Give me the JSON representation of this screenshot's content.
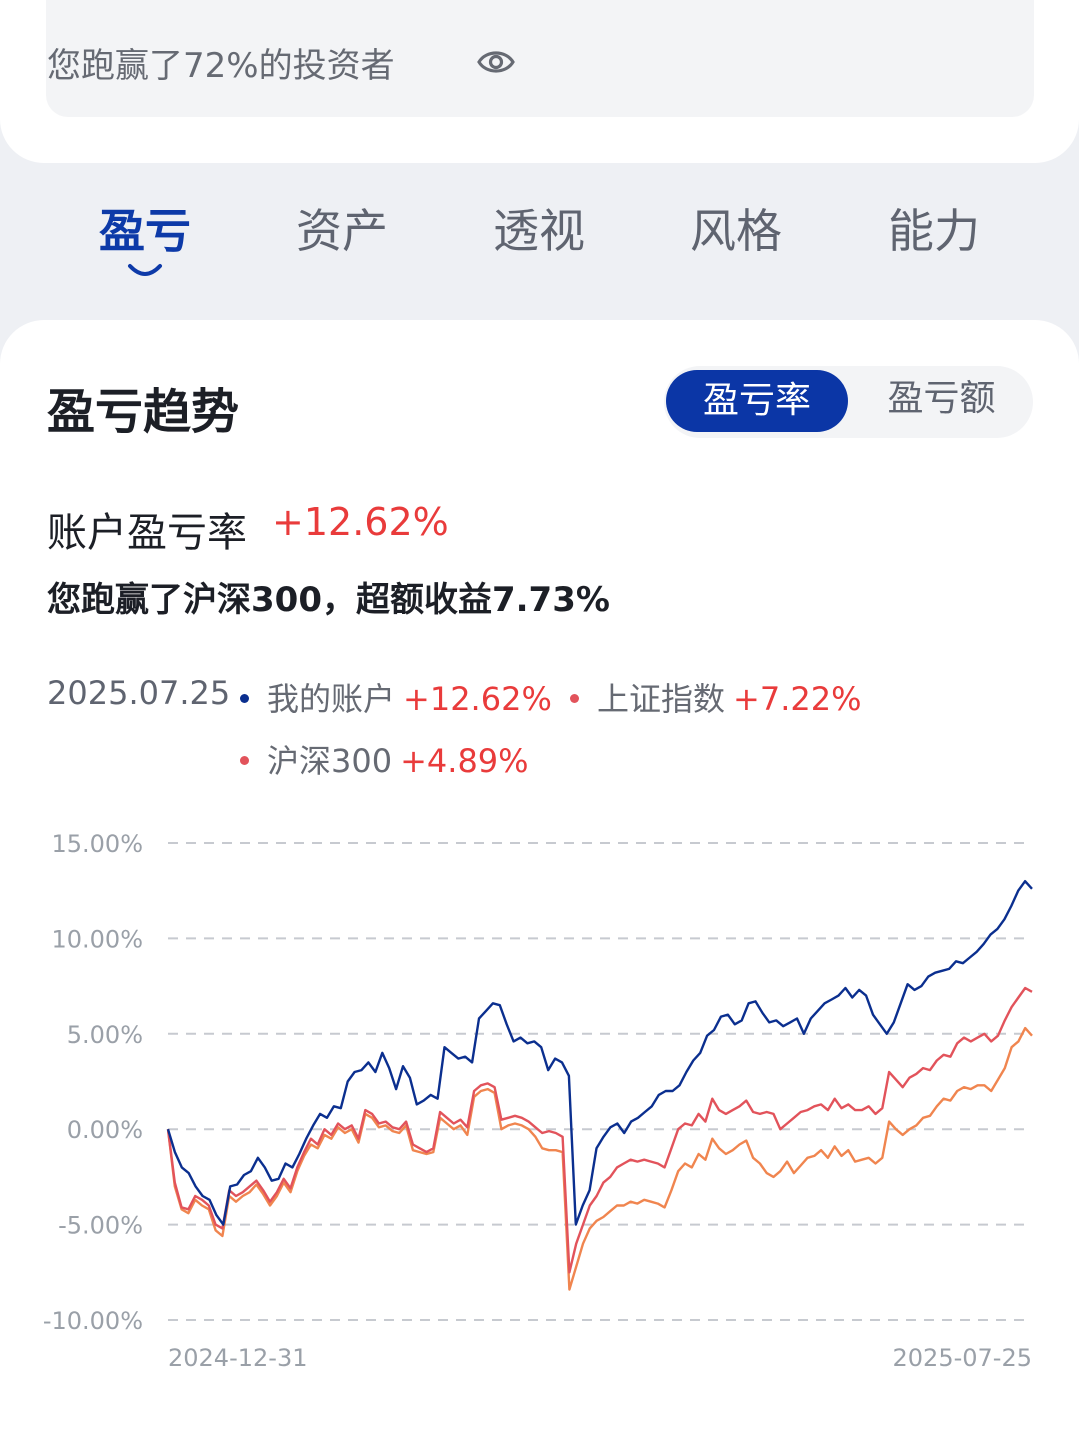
{
  "summary": {
    "beat_text": "您跑赢了72%的投资者"
  },
  "tabs": [
    {
      "label": "盈亏"
    },
    {
      "label": "资产"
    },
    {
      "label": "透视"
    },
    {
      "label": "风格"
    },
    {
      "label": "能力"
    }
  ],
  "section": {
    "title": "盈亏趋势",
    "toggle": {
      "active": "盈亏率",
      "inactive": "盈亏额"
    },
    "rate_label": "账户盈亏率",
    "rate_value": "+12.62%",
    "beat_sub": "您跑赢了沪深300，超额收益7.73%"
  },
  "legend": {
    "date": "2025.07.25",
    "items": [
      {
        "name": "我的账户",
        "value": "+12.62%",
        "color": "#0b2f8f"
      },
      {
        "name": "上证指数",
        "value": "+7.22%",
        "color": "#e2535b"
      },
      {
        "name": "沪深300",
        "value": "+4.89%",
        "color": "#f0854f"
      }
    ]
  },
  "chart_data": {
    "type": "line",
    "x_start": "2024-12-31",
    "x_end": "2025-07-25",
    "x_tick_labels": [
      "2024-12-31",
      "2025-07-25"
    ],
    "ylim": [
      -10,
      15
    ],
    "y_ticks": [
      15,
      10,
      5,
      0,
      -5,
      -10
    ],
    "y_tick_labels": [
      "15.00%",
      "10.00%",
      "5.00%",
      "0.00%",
      "-5.00%",
      "-10.00%"
    ],
    "grid": true,
    "series": [
      {
        "name": "我的账户",
        "color": "#0b2f8f",
        "values": [
          0,
          -1.2,
          -2.0,
          -2.3,
          -3.0,
          -3.5,
          -3.7,
          -4.5,
          -5.0,
          -3.0,
          -2.9,
          -2.4,
          -2.2,
          -1.5,
          -2.0,
          -2.7,
          -2.6,
          -1.8,
          -2.0,
          -1.3,
          -0.5,
          0.2,
          0.8,
          0.6,
          1.2,
          1.1,
          2.5,
          3.0,
          3.1,
          3.5,
          3.0,
          4.0,
          3.2,
          2.1,
          3.3,
          2.7,
          1.3,
          1.5,
          1.8,
          1.6,
          4.3,
          4.0,
          3.7,
          3.8,
          3.5,
          5.8,
          6.2,
          6.6,
          6.5,
          5.5,
          4.6,
          4.8,
          4.5,
          4.6,
          4.3,
          3.1,
          3.7,
          3.5,
          2.8,
          -5.0,
          -4.0,
          -3.2,
          -1.0,
          -0.4,
          0.1,
          0.3,
          -0.2,
          0.4,
          0.6,
          0.9,
          1.2,
          1.8,
          2.0,
          2.0,
          2.3,
          3.0,
          3.6,
          4.0,
          4.9,
          5.2,
          5.9,
          6.0,
          5.5,
          5.7,
          6.6,
          6.7,
          6.1,
          5.6,
          5.7,
          5.4,
          5.6,
          5.8,
          5.0,
          5.8,
          6.2,
          6.6,
          6.8,
          7.0,
          7.4,
          6.9,
          7.3,
          7.0,
          6.0,
          5.5,
          5.0,
          5.6,
          6.6,
          7.6,
          7.3,
          7.5,
          8.0,
          8.2,
          8.3,
          8.4,
          8.8,
          8.7,
          9.0,
          9.3,
          9.7,
          10.2,
          10.5,
          11.0,
          11.7,
          12.5,
          13.0,
          12.6
        ]
      },
      {
        "name": "上证指数",
        "color": "#e2535b",
        "values": [
          0,
          -2.8,
          -4.1,
          -4.2,
          -3.5,
          -3.7,
          -4.0,
          -5.0,
          -5.2,
          -3.2,
          -3.5,
          -3.3,
          -3.0,
          -2.7,
          -3.2,
          -3.8,
          -3.3,
          -2.6,
          -3.1,
          -2.0,
          -1.2,
          -0.5,
          -0.8,
          0.0,
          -0.3,
          0.3,
          0.0,
          0.2,
          -0.5,
          1.0,
          0.8,
          0.3,
          0.4,
          0.1,
          0.0,
          0.4,
          -0.8,
          -1.0,
          -1.2,
          -1.0,
          0.9,
          0.6,
          0.3,
          0.5,
          0.1,
          2.0,
          2.3,
          2.4,
          2.2,
          0.5,
          0.6,
          0.7,
          0.6,
          0.4,
          0.1,
          -0.2,
          -0.1,
          -0.2,
          -0.4,
          -7.5,
          -6.0,
          -5.0,
          -4.0,
          -3.5,
          -2.8,
          -2.5,
          -2.0,
          -1.8,
          -1.6,
          -1.7,
          -1.6,
          -1.7,
          -1.8,
          -2.0,
          -1.0,
          0.0,
          0.3,
          0.2,
          0.8,
          0.4,
          1.6,
          1.0,
          0.8,
          1.0,
          1.2,
          1.5,
          0.9,
          0.8,
          0.9,
          0.8,
          0.0,
          0.3,
          0.6,
          0.9,
          1.0,
          1.2,
          1.3,
          1.0,
          1.6,
          1.1,
          1.3,
          1.0,
          1.0,
          1.2,
          0.8,
          1.1,
          3.0,
          2.6,
          2.2,
          2.7,
          2.9,
          3.2,
          3.1,
          3.6,
          3.9,
          3.8,
          4.5,
          4.8,
          4.6,
          4.8,
          5.0,
          4.6,
          4.9,
          5.7,
          6.4,
          6.9,
          7.4,
          7.2
        ]
      },
      {
        "name": "沪深300",
        "color": "#f0854f",
        "values": [
          0,
          -3.0,
          -4.2,
          -4.4,
          -3.7,
          -4.0,
          -4.2,
          -5.3,
          -5.6,
          -3.5,
          -3.8,
          -3.5,
          -3.3,
          -2.9,
          -3.4,
          -4.0,
          -3.5,
          -2.8,
          -3.3,
          -2.2,
          -1.4,
          -0.8,
          -1.0,
          -0.3,
          -0.5,
          0.1,
          -0.2,
          0.0,
          -0.7,
          0.8,
          0.6,
          0.1,
          0.2,
          -0.1,
          -0.2,
          0.2,
          -1.1,
          -1.2,
          -1.3,
          -1.2,
          0.6,
          0.3,
          0.0,
          0.2,
          -0.3,
          1.7,
          2.0,
          2.1,
          1.9,
          0.0,
          0.2,
          0.3,
          0.2,
          0.0,
          -0.4,
          -1.0,
          -1.1,
          -1.1,
          -1.2,
          -8.4,
          -7.2,
          -6.0,
          -5.2,
          -4.8,
          -4.6,
          -4.3,
          -4.0,
          -4.0,
          -3.8,
          -3.9,
          -3.7,
          -3.8,
          -3.9,
          -4.1,
          -3.2,
          -2.2,
          -1.8,
          -2.0,
          -1.3,
          -1.6,
          -0.5,
          -1.0,
          -1.3,
          -1.1,
          -0.8,
          -0.6,
          -1.5,
          -1.8,
          -2.3,
          -2.5,
          -2.2,
          -1.7,
          -2.3,
          -1.9,
          -1.5,
          -1.4,
          -1.1,
          -1.5,
          -0.9,
          -1.4,
          -1.1,
          -1.7,
          -1.6,
          -1.5,
          -1.8,
          -1.5,
          0.4,
          0.0,
          -0.3,
          0.0,
          0.2,
          0.6,
          0.7,
          1.2,
          1.6,
          1.5,
          2.0,
          2.2,
          2.1,
          2.3,
          2.3,
          2.0,
          2.6,
          3.2,
          4.3,
          4.6,
          5.3,
          4.9
        ]
      }
    ]
  }
}
